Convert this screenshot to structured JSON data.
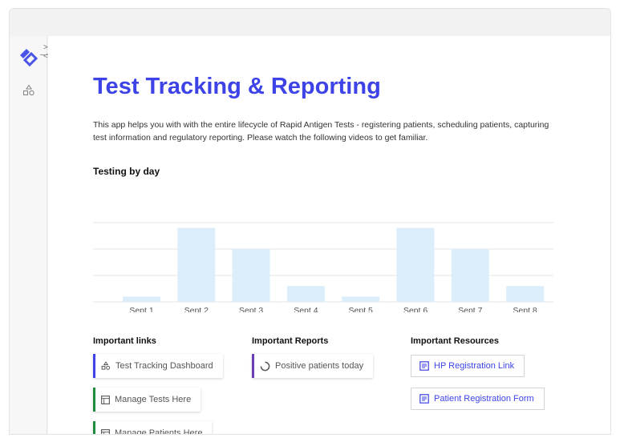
{
  "page": {
    "title": "Test Tracking & Reporting",
    "description": "This app helps you with with the entire lifecycle of Rapid Antigen Tests - registering patients, scheduling patients, capturing test information and regulatory reporting. Please watch the following videos to get familiar."
  },
  "sidebar": {
    "collapse_glyph": "><",
    "icons": [
      "app-logo-icon",
      "shapes-icon"
    ]
  },
  "colors": {
    "title": "#3d43e6",
    "bar_fill": "#dbeef9",
    "gridline": "#e6e6e6",
    "link_accent_blue": "#3d43e6",
    "link_accent_green": "#1e8e3e",
    "report_accent_purple": "#6a3fb5"
  },
  "chart_data": {
    "type": "bar",
    "title": "Testing by day",
    "categories": [
      "Sept 1",
      "Sept 2",
      "Sept 3",
      "Sept 4",
      "Sept 5",
      "Sept 6",
      "Sept 7",
      "Sept 8"
    ],
    "values": [
      0.2,
      2.8,
      2.0,
      0.6,
      0.2,
      2.8,
      2.0,
      0.6
    ],
    "ylim": [
      0,
      3
    ],
    "grid": true,
    "xlabel": "",
    "ylabel": ""
  },
  "links": {
    "heading": "Important links",
    "items": [
      {
        "label": "Test Tracking Dashboard",
        "icon": "shapes-icon",
        "accent": "#3d43e6"
      },
      {
        "label": "Manage Tests Here",
        "icon": "table-icon",
        "accent": "#1e8e3e"
      },
      {
        "label": "Manage Patients Here",
        "icon": "table-icon",
        "accent": "#1e8e3e"
      }
    ]
  },
  "reports": {
    "heading": "Important Reports",
    "items": [
      {
        "label": "Positive patients today",
        "icon": "loading-circle-icon",
        "accent": "#6a3fb5"
      }
    ]
  },
  "resources": {
    "heading": "Important Resources",
    "items": [
      {
        "label": "HP Registration Link",
        "icon": "document-icon"
      },
      {
        "label": "Patient Registration Form",
        "icon": "document-icon"
      }
    ]
  }
}
